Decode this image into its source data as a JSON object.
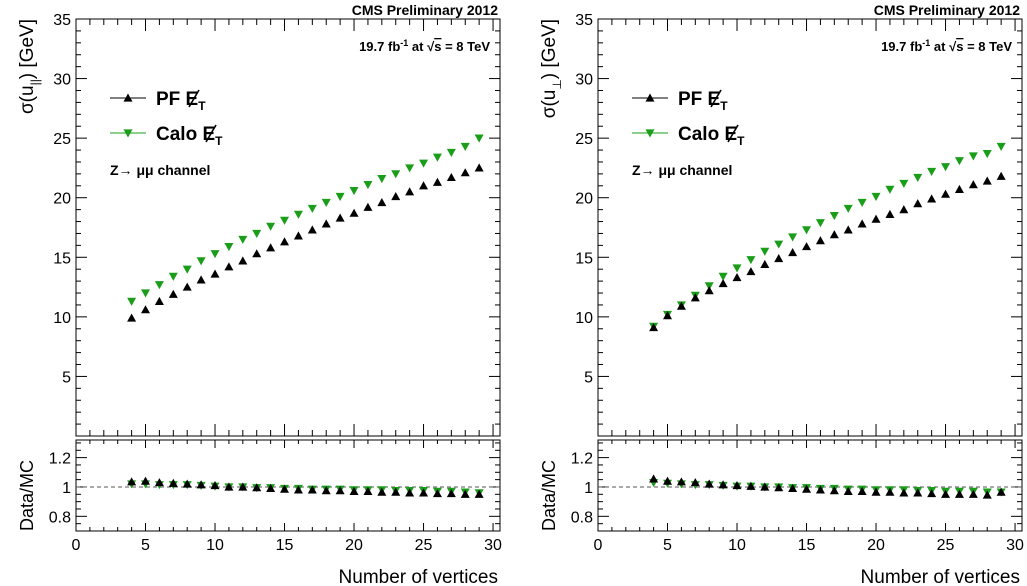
{
  "figure": {
    "header": "CMS Preliminary 2012",
    "lumi_prefix": "19.7 fb",
    "lumi_exp": "-1",
    "lumi_mid": " at ",
    "lumi_sqrt": "√",
    "lumi_s": "s",
    "lumi_suffix": " = 8 TeV",
    "legend_pf": "PF E",
    "legend_calo": "Calo E",
    "legend_sub": "T",
    "channel": "Z→ μμ channel",
    "xlabel": "Number of vertices",
    "ratio_label": "Data/MC"
  },
  "chart_data": [
    {
      "type": "scatter",
      "ylabel": "σ(u‖) [GeV]",
      "ylabel_main": "σ(u",
      "ylabel_sub": "||",
      "ylabel_tail": ") [GeV]",
      "xlim": [
        0,
        30.5
      ],
      "ylim": [
        0,
        35
      ],
      "ratio_ylim": [
        0.7,
        1.32
      ],
      "x_ticks": [
        0,
        5,
        10,
        15,
        20,
        25,
        30
      ],
      "y_ticks": [
        5,
        10,
        15,
        20,
        25,
        30,
        35
      ],
      "ratio_ticks": [
        0.8,
        1,
        1.2
      ],
      "x": [
        4,
        5,
        6,
        7,
        8,
        9,
        10,
        11,
        12,
        13,
        14,
        15,
        16,
        17,
        18,
        19,
        20,
        21,
        22,
        23,
        24,
        25,
        26,
        27,
        28,
        29
      ],
      "series": [
        {
          "name": "PF E_T (missing)",
          "marker": "triangle-up",
          "color": "#000000",
          "values": [
            9.9,
            10.6,
            11.3,
            11.9,
            12.5,
            13.1,
            13.6,
            14.2,
            14.7,
            15.3,
            15.8,
            16.3,
            16.8,
            17.3,
            17.8,
            18.3,
            18.7,
            19.2,
            19.6,
            20.1,
            20.5,
            21.0,
            21.3,
            21.7,
            22.1,
            22.5
          ],
          "ratio": [
            1.035,
            1.04,
            1.03,
            1.025,
            1.02,
            1.015,
            1.01,
            1.0,
            1.0,
            0.995,
            0.99,
            0.985,
            0.98,
            0.98,
            0.975,
            0.975,
            0.97,
            0.97,
            0.965,
            0.965,
            0.96,
            0.96,
            0.955,
            0.955,
            0.95,
            0.95
          ]
        },
        {
          "name": "Calo E_T (missing)",
          "marker": "triangle-down",
          "color": "#1a9e1a",
          "values": [
            11.3,
            12.0,
            12.7,
            13.4,
            14.0,
            14.7,
            15.3,
            15.9,
            16.5,
            17.0,
            17.6,
            18.1,
            18.6,
            19.1,
            19.6,
            20.1,
            20.6,
            21.1,
            21.6,
            22.0,
            22.5,
            22.9,
            23.4,
            23.8,
            24.3,
            25.0
          ],
          "ratio": [
            1.02,
            1.02,
            1.015,
            1.015,
            1.015,
            1.01,
            1.005,
            1.0,
            1.0,
            0.995,
            0.995,
            0.99,
            0.99,
            0.985,
            0.985,
            0.985,
            0.98,
            0.98,
            0.98,
            0.975,
            0.975,
            0.975,
            0.97,
            0.97,
            0.965,
            0.96
          ]
        }
      ]
    },
    {
      "type": "scatter",
      "ylabel": "σ(u⊥) [GeV]",
      "ylabel_main": "σ(u",
      "ylabel_sub": "⊥",
      "ylabel_tail": ") [GeV]",
      "xlim": [
        0,
        30.5
      ],
      "ylim": [
        0,
        35
      ],
      "ratio_ylim": [
        0.7,
        1.32
      ],
      "x_ticks": [
        0,
        5,
        10,
        15,
        20,
        25,
        30
      ],
      "y_ticks": [
        5,
        10,
        15,
        20,
        25,
        30,
        35
      ],
      "ratio_ticks": [
        0.8,
        1,
        1.2
      ],
      "x": [
        4,
        5,
        6,
        7,
        8,
        9,
        10,
        11,
        12,
        13,
        14,
        15,
        16,
        17,
        18,
        19,
        20,
        21,
        22,
        23,
        24,
        25,
        26,
        27,
        28,
        29
      ],
      "series": [
        {
          "name": "PF E_T (missing)",
          "marker": "triangle-up",
          "color": "#000000",
          "values": [
            9.1,
            10.1,
            10.9,
            11.6,
            12.2,
            12.8,
            13.3,
            13.8,
            14.4,
            14.9,
            15.4,
            15.9,
            16.4,
            16.9,
            17.3,
            17.8,
            18.2,
            18.6,
            19.0,
            19.5,
            19.9,
            20.3,
            20.7,
            21.1,
            21.4,
            21.8
          ],
          "ratio": [
            1.055,
            1.04,
            1.035,
            1.03,
            1.02,
            1.015,
            1.01,
            1.005,
            1.0,
            0.995,
            0.99,
            0.985,
            0.98,
            0.975,
            0.97,
            0.97,
            0.965,
            0.965,
            0.96,
            0.96,
            0.955,
            0.95,
            0.95,
            0.95,
            0.945,
            0.965
          ]
        },
        {
          "name": "Calo E_T (missing)",
          "marker": "triangle-down",
          "color": "#1a9e1a",
          "values": [
            9.2,
            10.2,
            11.0,
            11.8,
            12.6,
            13.4,
            14.1,
            14.8,
            15.5,
            16.1,
            16.7,
            17.3,
            17.9,
            18.5,
            19.1,
            19.6,
            20.1,
            20.7,
            21.2,
            21.7,
            22.2,
            22.6,
            23.1,
            23.5,
            23.7,
            24.3
          ],
          "ratio": [
            1.03,
            1.025,
            1.02,
            1.015,
            1.015,
            1.01,
            1.005,
            1.005,
            1.0,
            1.0,
            0.995,
            0.995,
            0.99,
            0.99,
            0.985,
            0.985,
            0.98,
            0.98,
            0.98,
            0.975,
            0.975,
            0.97,
            0.97,
            0.97,
            0.965,
            0.965
          ]
        }
      ]
    }
  ]
}
